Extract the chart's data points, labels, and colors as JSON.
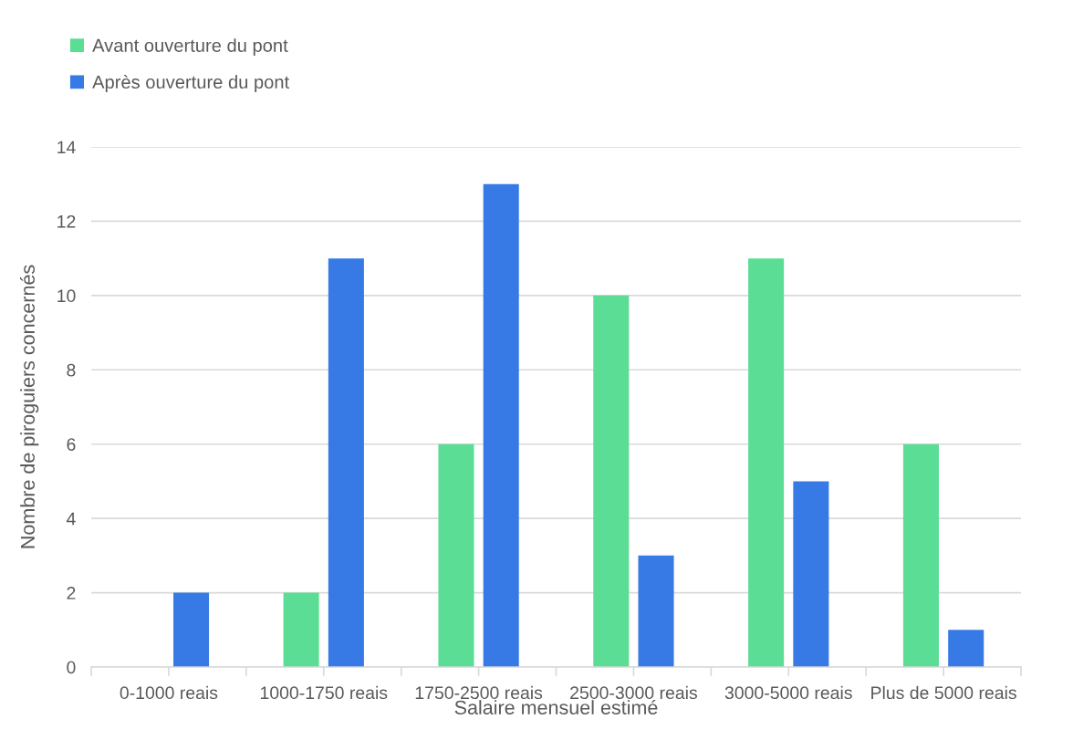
{
  "chart_data": {
    "type": "bar",
    "xlabel": "Salaire mensuel estimé",
    "ylabel": "Nombre de piroguiers concernés",
    "categories": [
      "0-1000 reais",
      "1000-1750 reais",
      "1750-2500 reais",
      "2500-3000 reais",
      "3000-5000 reais",
      "Plus de 5000 reais"
    ],
    "series": [
      {
        "name": "Avant ouverture du pont",
        "color": "#5cdd95",
        "values": [
          0,
          2,
          6,
          10,
          11,
          6
        ]
      },
      {
        "name": "Après ouverture du pont",
        "color": "#377ae6",
        "values": [
          2,
          11,
          13,
          3,
          5,
          1
        ]
      }
    ],
    "ylim": [
      0,
      14
    ],
    "yticks": [
      0,
      2,
      4,
      6,
      8,
      10,
      12,
      14
    ],
    "grid": "y",
    "legend": "top left"
  }
}
